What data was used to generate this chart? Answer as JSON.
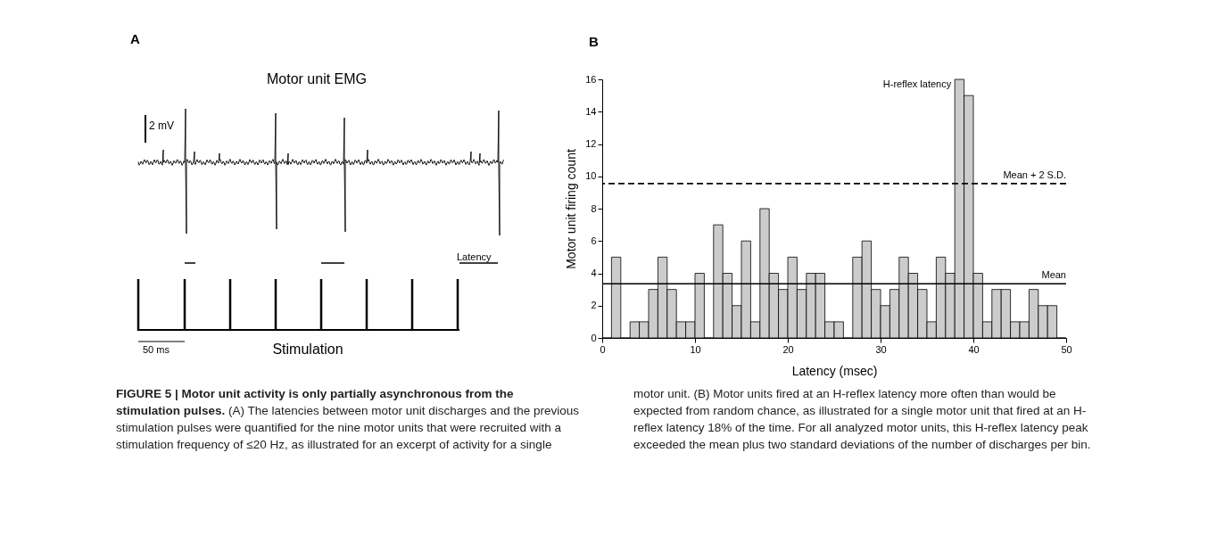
{
  "chart_data": [
    {
      "type": "other",
      "title": "Motor unit EMG",
      "annotations": [
        "A",
        "2 mV",
        "Latency",
        "50 ms",
        "Stimulation"
      ]
    },
    {
      "type": "histogram",
      "xlabel": "Latency (msec)",
      "ylabel": "Motor unit firing count",
      "color": "#cccccc",
      "bins": [
        0,
        1,
        2,
        3,
        4,
        5,
        6,
        7,
        8,
        9,
        10,
        11,
        12,
        13,
        14,
        15,
        16,
        17,
        18,
        19,
        20,
        21,
        22,
        23,
        24,
        25,
        26,
        27,
        28,
        29,
        30,
        31,
        32,
        33,
        34,
        35,
        36,
        37,
        38,
        39,
        40,
        41,
        42,
        43,
        44,
        45,
        46,
        47,
        48,
        49,
        50
      ],
      "values": [
        0,
        5,
        0,
        1,
        1,
        3,
        5,
        3,
        1,
        1,
        4,
        0,
        7,
        4,
        2,
        6,
        1,
        8,
        4,
        3,
        5,
        3,
        4,
        4,
        1,
        1,
        0,
        5,
        6,
        3,
        2,
        3,
        5,
        4,
        3,
        1,
        5,
        4,
        16,
        15,
        4,
        1,
        3,
        3,
        1,
        1,
        3,
        2,
        2,
        0
      ],
      "xlim": [
        0,
        50
      ],
      "ylim": [
        0,
        16
      ],
      "xticks": [
        0,
        10,
        20,
        30,
        40,
        50
      ],
      "yticks": [
        0,
        2,
        4,
        6,
        8,
        10,
        12,
        14,
        16
      ],
      "grid": false,
      "ref_lines": [
        {
          "axis": "y",
          "value": 3.35,
          "label": "Mean",
          "color": "#000000",
          "line_style": "solid"
        },
        {
          "axis": "y",
          "value": 9.55,
          "label": "Mean + 2 S.D.",
          "color": "#000000",
          "line_style": "dashed"
        }
      ],
      "annotations": [
        {
          "text": "H-reflex latency",
          "x": 38,
          "y": 16
        },
        "B",
        "FIGURE 5 | Motor unit activity is only partially asynchronous from the stimulation pulses.",
        "(A) The latencies between motor unit discharges and the previous stimulation pulses were quantified for the nine motor units that were recruited with a stimulation frequency of ≤20 Hz, as illustrated for an excerpt of activity for a single motor unit. (B) Motor units fired at an H-reflex latency more often than would be expected from random chance, as illustrated for a single motor unit that fired at an H-reflex latency 18% of the time. For all analyzed motor units, this H-reflex latency peak exceeded the mean plus two standard deviations of the number of discharges per bin."
      ]
    }
  ]
}
